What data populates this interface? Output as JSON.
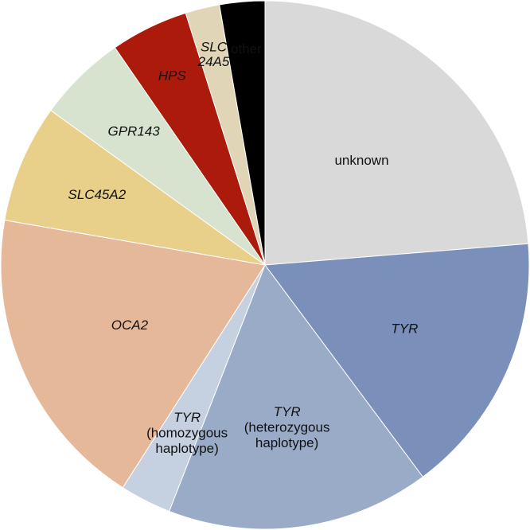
{
  "chart_data": {
    "type": "pie",
    "start": "12 o'clock",
    "direction": "clockwise",
    "slices": [
      {
        "name": "unknown",
        "value": 24.9,
        "color": "#d9d9d9",
        "lines": [
          "unknown"
        ],
        "italic": [
          false
        ],
        "label_color": "#111111"
      },
      {
        "name": "TYR",
        "value": 16.9,
        "color": "#7a8fba",
        "lines": [
          "TYR"
        ],
        "italic": [
          true
        ],
        "label_color": "#111111"
      },
      {
        "name": "TYR (heterozygous haplotype)",
        "value": 16.9,
        "color": "#99abc7",
        "lines": [
          "TYR",
          "(heterozygous",
          "haplotype)"
        ],
        "italic": [
          true,
          false,
          false
        ],
        "label_color": "#111111"
      },
      {
        "name": "TYR (homozygous haplotype)",
        "value": 3.3,
        "color": "#c5d0e0",
        "lines": [
          "TYR",
          "(homozygous",
          "haplotype)"
        ],
        "italic": [
          true,
          false,
          false
        ],
        "label_color": "#111111"
      },
      {
        "name": "OCA2",
        "value": 19.6,
        "color": "#e6b89a",
        "lines": [
          "OCA2"
        ],
        "italic": [
          true
        ],
        "label_color": "#111111"
      },
      {
        "name": "SLC45A2",
        "value": 7.6,
        "color": "#e8cf8a",
        "lines": [
          "SLC45A2"
        ],
        "italic": [
          true
        ],
        "label_color": "#111111"
      },
      {
        "name": "GPR143",
        "value": 5.7,
        "color": "#d7e2cf",
        "lines": [
          "GPR143"
        ],
        "italic": [
          true
        ],
        "label_color": "#111111"
      },
      {
        "name": "HPS",
        "value": 5.0,
        "color": "#ab1a0b",
        "lines": [
          "HPS"
        ],
        "italic": [
          true
        ],
        "label_color": "#ffffff"
      },
      {
        "name": "SLC24A5",
        "value": 2.2,
        "color": "#e0d5b6",
        "lines": [
          "SLC",
          "24A5"
        ],
        "italic": [
          true,
          true
        ],
        "label_color": "#111111"
      },
      {
        "name": "other",
        "value": 2.9,
        "color": "#000000",
        "lines": [
          "other"
        ],
        "italic": [
          false
        ],
        "label_color": "#ffffff"
      }
    ]
  }
}
